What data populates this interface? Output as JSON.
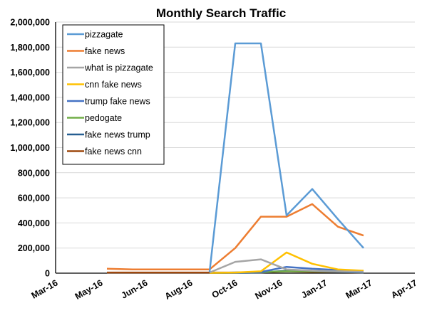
{
  "chart_data": {
    "type": "line",
    "title": "Monthly Search Traffic",
    "xlabel": "",
    "ylabel": "",
    "ylim": [
      0,
      2000000
    ],
    "yticks": [
      0,
      200000,
      400000,
      600000,
      800000,
      1000000,
      1200000,
      1400000,
      1600000,
      1800000,
      2000000
    ],
    "ytick_labels": [
      "0",
      "200,000",
      "400,000",
      "600,000",
      "800,000",
      "1,000,000",
      "1,200,000",
      "1,400,000",
      "1,600,000",
      "1,800,000",
      "2,000,000"
    ],
    "xtick_labels": [
      "Mar-16",
      "May-16",
      "Jun-16",
      "Aug-16",
      "Oct-16",
      "Nov-16",
      "Jan-17",
      "Mar-17",
      "Apr-17"
    ],
    "x": [
      "May-16",
      "Jun-16",
      "Jul-16",
      "Aug-16",
      "Sep-16",
      "Oct-16",
      "Nov-16",
      "Dec-16",
      "Jan-17",
      "Feb-17",
      "Mar-17"
    ],
    "grid": "horizontal",
    "legend_position": "top-left",
    "series": [
      {
        "name": "pizzagate",
        "color": "#5B9BD5",
        "values": [
          null,
          null,
          null,
          null,
          10000,
          1830000,
          1830000,
          460000,
          670000,
          430000,
          200000
        ]
      },
      {
        "name": "fake news",
        "color": "#ED7D31",
        "values": [
          35000,
          30000,
          30000,
          30000,
          30000,
          200000,
          450000,
          450000,
          550000,
          370000,
          300000
        ]
      },
      {
        "name": "what is pizzagate",
        "color": "#A5A5A5",
        "values": [
          null,
          null,
          null,
          null,
          5000,
          90000,
          110000,
          30000,
          20000,
          15000,
          10000
        ]
      },
      {
        "name": "cnn fake news",
        "color": "#FFC000",
        "values": [
          null,
          null,
          null,
          null,
          2000,
          5000,
          15000,
          165000,
          75000,
          30000,
          20000
        ]
      },
      {
        "name": "trump fake news",
        "color": "#4472C4",
        "values": [
          null,
          null,
          null,
          null,
          2000,
          5000,
          10000,
          50000,
          35000,
          25000,
          15000
        ]
      },
      {
        "name": "pedogate",
        "color": "#70AD47",
        "values": [
          null,
          null,
          null,
          null,
          2000,
          5000,
          10000,
          15000,
          15000,
          15000,
          15000
        ]
      },
      {
        "name": "fake news trump",
        "color": "#255E91",
        "values": [
          null,
          null,
          null,
          null,
          2000,
          3000,
          5000,
          20000,
          15000,
          10000,
          5000
        ]
      },
      {
        "name": "fake news cnn",
        "color": "#9E480E",
        "values": [
          5000,
          5000,
          5000,
          5000,
          5000,
          5000,
          5000,
          15000,
          10000,
          8000,
          5000
        ]
      }
    ]
  }
}
